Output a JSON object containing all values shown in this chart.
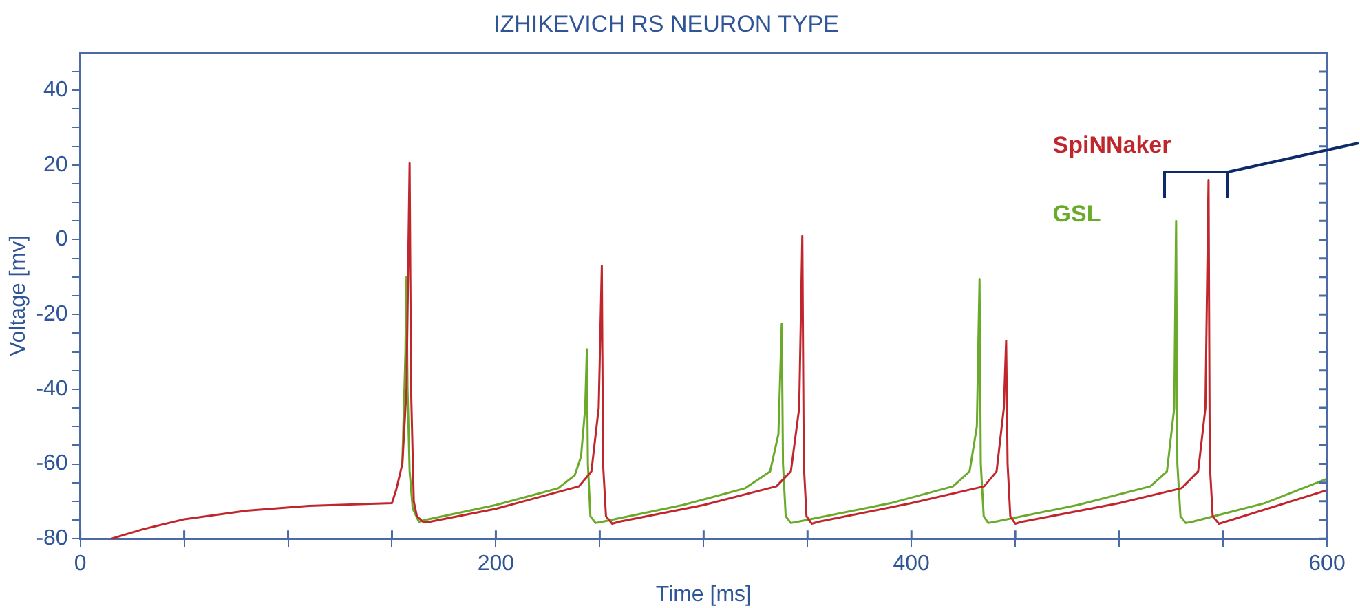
{
  "chart_data": {
    "type": "line",
    "title": "IZHIKEVICH RS NEURON TYPE",
    "xlabel": "Time [ms]",
    "ylabel": "Voltage [mv]",
    "xlim": [
      0,
      600
    ],
    "ylim": [
      -80,
      50
    ],
    "xticks": [
      0,
      {
        "value": 50,
        "label": null
      },
      {
        "value": 100,
        "label": null
      },
      {
        "value": 150,
        "label": null
      },
      200,
      {
        "value": 250,
        "label": null
      },
      {
        "value": 300,
        "label": null
      },
      {
        "value": 350,
        "label": null
      },
      400,
      {
        "value": 450,
        "label": null
      },
      {
        "value": 500,
        "label": null
      },
      {
        "value": 550,
        "label": null
      },
      600
    ],
    "yticks": [
      -80,
      {
        "value": -75,
        "label": null
      },
      {
        "value": -70,
        "label": null
      },
      {
        "value": -65,
        "label": null
      },
      -60,
      {
        "value": -55,
        "label": null
      },
      {
        "value": -50,
        "label": null
      },
      {
        "value": -45,
        "label": null
      },
      -40,
      {
        "value": -35,
        "label": null
      },
      {
        "value": -30,
        "label": null
      },
      {
        "value": -25,
        "label": null
      },
      -20,
      {
        "value": -15,
        "label": null
      },
      {
        "value": -10,
        "label": null
      },
      {
        "value": -5,
        "label": null
      },
      0,
      {
        "value": 5,
        "label": null
      },
      {
        "value": 10,
        "label": null
      },
      {
        "value": 15,
        "label": null
      },
      20,
      {
        "value": 25,
        "label": null
      },
      {
        "value": 30,
        "label": null
      },
      {
        "value": 35,
        "label": null
      },
      40,
      {
        "value": 45,
        "label": null
      }
    ],
    "grid": false,
    "legend": "top right",
    "marker": "none",
    "line_style": "solid",
    "series": [
      {
        "name": "SpiNNaker",
        "color": "#c0272d",
        "x": [
          15,
          30,
          50,
          80,
          110,
          150,
          152,
          155,
          157,
          158.5,
          159.2,
          160.5,
          162,
          165,
          168,
          200,
          240,
          246,
          249.5,
          251,
          251.6,
          253,
          256,
          259,
          300,
          335,
          342,
          346,
          347.5,
          348.2,
          349.5,
          352,
          355,
          400,
          435,
          441,
          444.5,
          445.6,
          446.3,
          447.6,
          450,
          453,
          500,
          530,
          538,
          541.5,
          543,
          543.6,
          545,
          548,
          551,
          600
        ],
        "values": [
          -80,
          -77.5,
          -74.8,
          -72.5,
          -71.2,
          -70.5,
          -67,
          -60,
          -40,
          20.5,
          -40,
          -70,
          -74,
          -75.5,
          -75.5,
          -72,
          -66,
          -62,
          -45,
          -7,
          -60,
          -74,
          -76,
          -75.5,
          -71,
          -66,
          -62,
          -45,
          1,
          -60,
          -74,
          -76,
          -75.5,
          -70.5,
          -66,
          -62,
          -45,
          -27,
          -60,
          -74,
          -76,
          -75.5,
          -70.5,
          -66.5,
          -62,
          -45,
          16,
          -60,
          -74,
          -76,
          -75.5,
          -67
        ]
      },
      {
        "name": "GSL",
        "color": "#6aaa2a",
        "x": [
          155,
          156.5,
          157,
          157.5,
          158.5,
          160,
          163,
          166,
          200,
          230,
          238,
          241,
          243,
          243.8,
          244.3,
          245.5,
          248,
          251,
          290,
          320,
          332,
          336,
          337.6,
          338.2,
          339.5,
          342,
          345,
          390,
          420,
          428,
          431.5,
          432.8,
          433.4,
          434.8,
          437,
          440,
          480,
          515,
          523,
          526.5,
          527.4,
          528,
          529.5,
          532,
          535,
          570,
          600
        ],
        "values": [
          -60,
          -30,
          -10,
          -40,
          -62,
          -72,
          -75.5,
          -75,
          -71,
          -66.5,
          -63,
          -58,
          -45,
          -29.3,
          -60,
          -74,
          -75.8,
          -75.5,
          -71,
          -66.5,
          -62,
          -52,
          -22.5,
          -60,
          -74,
          -75.8,
          -75.5,
          -70.5,
          -66,
          -62,
          -50,
          -10.5,
          -60,
          -74,
          -75.8,
          -75.5,
          -71,
          -66,
          -62,
          -45,
          5,
          -60,
          -74,
          -75.8,
          -75.5,
          -70.5,
          -64
        ]
      }
    ]
  }
}
